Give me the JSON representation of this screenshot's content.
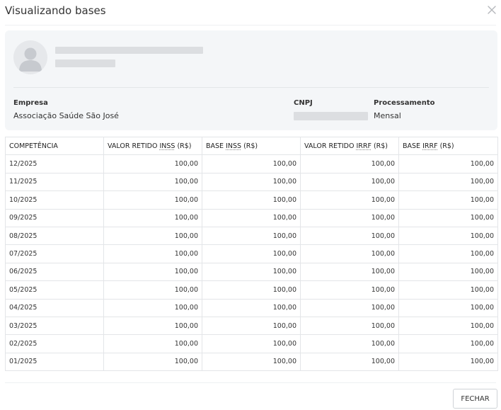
{
  "dialog": {
    "title": "Visualizando bases",
    "close_icon": "close-icon"
  },
  "profile": {
    "avatar_icon": "user-avatar-icon",
    "fields": {
      "empresa_label": "Empresa",
      "empresa_value": "Associação Saúde São José",
      "cnpj_label": "CNPJ",
      "processamento_label": "Processamento",
      "processamento_value": "Mensal"
    }
  },
  "table": {
    "headers": [
      {
        "pre": "COMPETÊNCIA",
        "abbr": "",
        "post": ""
      },
      {
        "pre": "VALOR RETIDO ",
        "abbr": "INSS",
        "post": " (R$)"
      },
      {
        "pre": "BASE ",
        "abbr": "INSS",
        "post": " (R$)"
      },
      {
        "pre": "VALOR RETIDO ",
        "abbr": "IRRF",
        "post": " (R$)"
      },
      {
        "pre": "BASE ",
        "abbr": "IRRF",
        "post": " (R$)"
      }
    ],
    "rows": [
      [
        "12/2025",
        "100,00",
        "100,00",
        "100,00",
        "100,00"
      ],
      [
        "11/2025",
        "100,00",
        "100,00",
        "100,00",
        "100,00"
      ],
      [
        "10/2025",
        "100,00",
        "100,00",
        "100,00",
        "100,00"
      ],
      [
        "09/2025",
        "100,00",
        "100,00",
        "100,00",
        "100,00"
      ],
      [
        "08/2025",
        "100,00",
        "100,00",
        "100,00",
        "100,00"
      ],
      [
        "07/2025",
        "100,00",
        "100,00",
        "100,00",
        "100,00"
      ],
      [
        "06/2025",
        "100,00",
        "100,00",
        "100,00",
        "100,00"
      ],
      [
        "05/2025",
        "100,00",
        "100,00",
        "100,00",
        "100,00"
      ],
      [
        "04/2025",
        "100,00",
        "100,00",
        "100,00",
        "100,00"
      ],
      [
        "03/2025",
        "100,00",
        "100,00",
        "100,00",
        "100,00"
      ],
      [
        "02/2025",
        "100,00",
        "100,00",
        "100,00",
        "100,00"
      ],
      [
        "01/2025",
        "100,00",
        "100,00",
        "100,00",
        "100,00"
      ]
    ]
  },
  "footer": {
    "close_button_label": "FECHAR"
  }
}
